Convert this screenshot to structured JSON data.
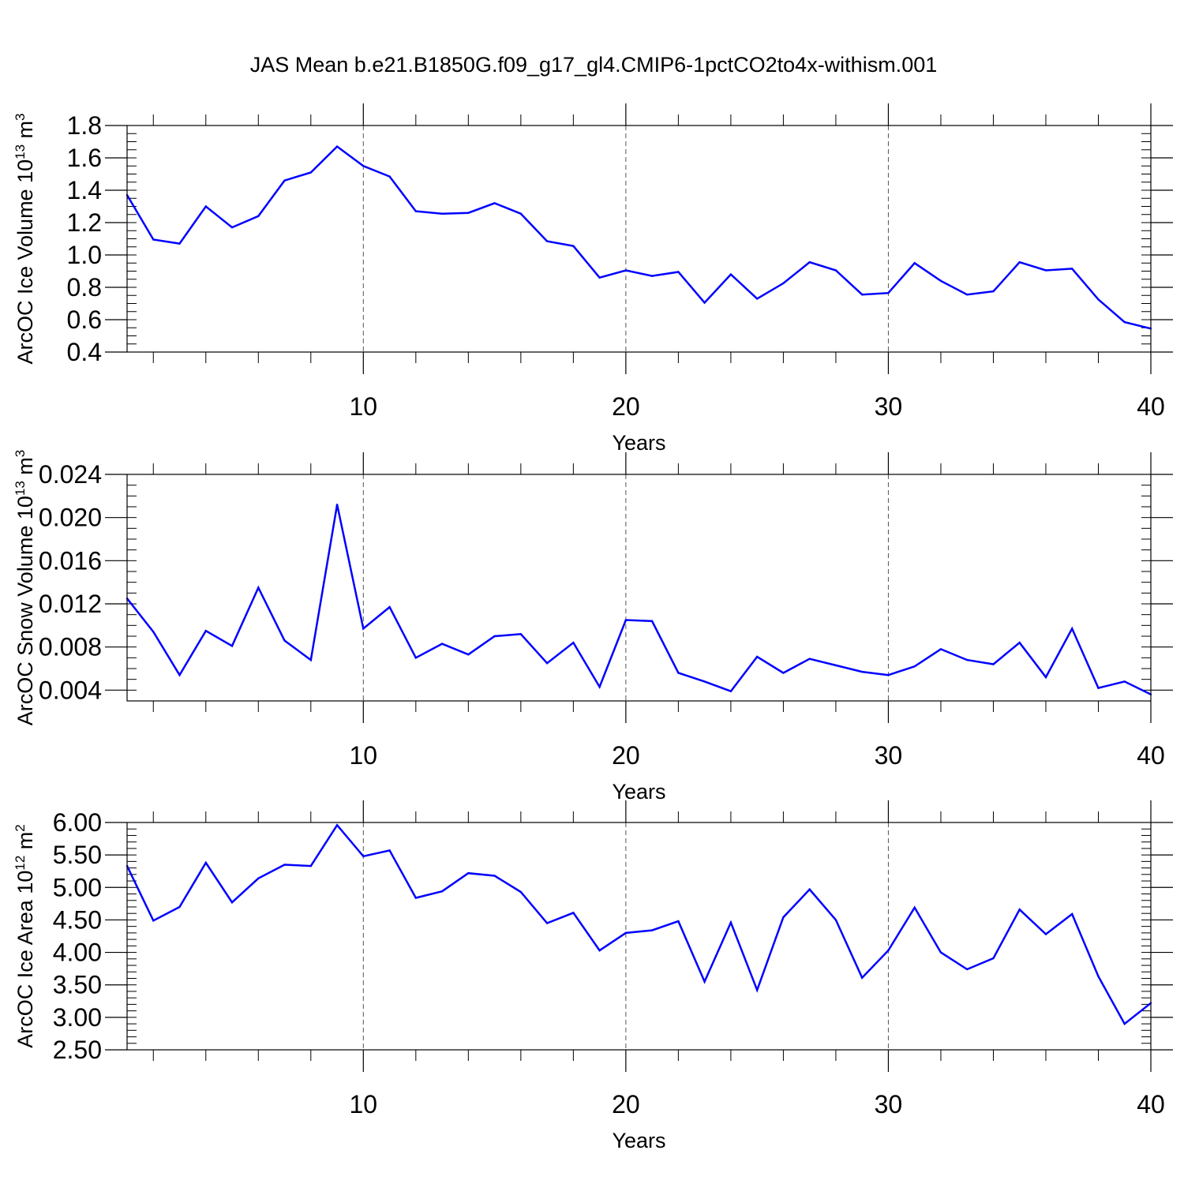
{
  "title": "JAS Mean b.e21.B1850G.f09_g17_gl4.CMIP6-1pctCO2to4x-withism.001",
  "colors": {
    "line": "#0000ff",
    "axis": "#000000",
    "grid": "#555555",
    "background": "#ffffff"
  },
  "chart_data": [
    {
      "type": "line",
      "xlabel": "Years",
      "ylabel_main": "ArcOC Ice Volume 10",
      "ylabel_exp": "13",
      "ylabel_unit": " m",
      "ylabel_unit_exp": "3",
      "xlim": [
        1,
        40
      ],
      "ylim": [
        0.4,
        1.8
      ],
      "xticks": [
        10,
        20,
        30,
        40
      ],
      "xtick_labels": [
        "10",
        "20",
        "30",
        "40"
      ],
      "yticks": [
        0.4,
        0.6,
        0.8,
        1.0,
        1.2,
        1.4,
        1.6,
        1.8
      ],
      "ytick_labels": [
        "0.4",
        "0.6",
        "0.8",
        "1.0",
        "1.2",
        "1.4",
        "1.6",
        "1.8"
      ],
      "yminor_step": 0.05,
      "grid_x": [
        10,
        20,
        30
      ],
      "series": [
        {
          "name": "ArcOC Ice Volume",
          "x": [
            1,
            2,
            3,
            4,
            5,
            6,
            7,
            8,
            9,
            10,
            11,
            12,
            13,
            14,
            15,
            16,
            17,
            18,
            19,
            20,
            21,
            22,
            23,
            24,
            25,
            26,
            27,
            28,
            29,
            30,
            31,
            32,
            33,
            34,
            35,
            36,
            37,
            38,
            39,
            40
          ],
          "values": [
            1.37,
            1.095,
            1.07,
            1.3,
            1.17,
            1.24,
            1.46,
            1.51,
            1.67,
            1.55,
            1.485,
            1.27,
            1.255,
            1.26,
            1.32,
            1.255,
            1.085,
            1.055,
            0.86,
            0.905,
            0.87,
            0.895,
            0.705,
            0.88,
            0.73,
            0.825,
            0.955,
            0.905,
            0.755,
            0.765,
            0.95,
            0.84,
            0.755,
            0.775,
            0.955,
            0.905,
            0.915,
            0.725,
            0.585,
            0.545
          ]
        }
      ]
    },
    {
      "type": "line",
      "xlabel": "Years",
      "ylabel_main": "ArcOC Snow Volume 10",
      "ylabel_exp": "13",
      "ylabel_unit": " m",
      "ylabel_unit_exp": "3",
      "xlim": [
        1,
        40
      ],
      "ylim": [
        0.003,
        0.024
      ],
      "xticks": [
        10,
        20,
        30,
        40
      ],
      "xtick_labels": [
        "10",
        "20",
        "30",
        "40"
      ],
      "yticks": [
        0.004,
        0.008,
        0.012,
        0.016,
        0.02,
        0.024
      ],
      "ytick_labels": [
        "0.004",
        "0.008",
        "0.012",
        "0.016",
        "0.020",
        "0.024"
      ],
      "yminor_step": 0.001,
      "grid_x": [
        10,
        20,
        30
      ],
      "series": [
        {
          "name": "ArcOC Snow Volume",
          "x": [
            1,
            2,
            3,
            4,
            5,
            6,
            7,
            8,
            9,
            10,
            11,
            12,
            13,
            14,
            15,
            16,
            17,
            18,
            19,
            20,
            21,
            22,
            23,
            24,
            25,
            26,
            27,
            28,
            29,
            30,
            31,
            32,
            33,
            34,
            35,
            36,
            37,
            38,
            39,
            40
          ],
          "values": [
            0.0125,
            0.0094,
            0.0054,
            0.0095,
            0.0081,
            0.0135,
            0.0086,
            0.0068,
            0.0212,
            0.0097,
            0.0117,
            0.007,
            0.0083,
            0.0073,
            0.009,
            0.0092,
            0.0065,
            0.0084,
            0.0043,
            0.0105,
            0.0104,
            0.0056,
            0.0048,
            0.0039,
            0.0071,
            0.0056,
            0.0069,
            0.0063,
            0.0057,
            0.0054,
            0.0062,
            0.0078,
            0.0068,
            0.0064,
            0.0084,
            0.0052,
            0.0097,
            0.0042,
            0.0048,
            0.0036
          ]
        }
      ]
    },
    {
      "type": "line",
      "xlabel": "Years",
      "ylabel_main": "ArcOC Ice Area 10",
      "ylabel_exp": "12",
      "ylabel_unit": " m",
      "ylabel_unit_exp": "2",
      "xlim": [
        1,
        40
      ],
      "ylim": [
        2.5,
        6.0
      ],
      "xticks": [
        10,
        20,
        30,
        40
      ],
      "xtick_labels": [
        "10",
        "20",
        "30",
        "40"
      ],
      "yticks": [
        2.5,
        3.0,
        3.5,
        4.0,
        4.5,
        5.0,
        5.5,
        6.0
      ],
      "ytick_labels": [
        "2.50",
        "3.00",
        "3.50",
        "4.00",
        "4.50",
        "5.00",
        "5.50",
        "6.00"
      ],
      "yminor_step": 0.1,
      "grid_x": [
        10,
        20,
        30
      ],
      "series": [
        {
          "name": "ArcOC Ice Area",
          "x": [
            1,
            2,
            3,
            4,
            5,
            6,
            7,
            8,
            9,
            10,
            11,
            12,
            13,
            14,
            15,
            16,
            17,
            18,
            19,
            20,
            21,
            22,
            23,
            24,
            25,
            26,
            27,
            28,
            29,
            30,
            31,
            32,
            33,
            34,
            35,
            36,
            37,
            38,
            39,
            40
          ],
          "values": [
            5.33,
            4.49,
            4.7,
            5.38,
            4.77,
            5.14,
            5.35,
            5.33,
            5.96,
            5.48,
            5.57,
            4.84,
            4.94,
            5.22,
            5.18,
            4.93,
            4.45,
            4.61,
            4.03,
            4.3,
            4.34,
            4.48,
            3.55,
            4.46,
            3.42,
            4.54,
            4.97,
            4.5,
            3.61,
            4.03,
            4.69,
            4.0,
            3.74,
            3.91,
            4.66,
            4.28,
            4.59,
            3.63,
            2.9,
            3.22
          ]
        }
      ]
    }
  ]
}
